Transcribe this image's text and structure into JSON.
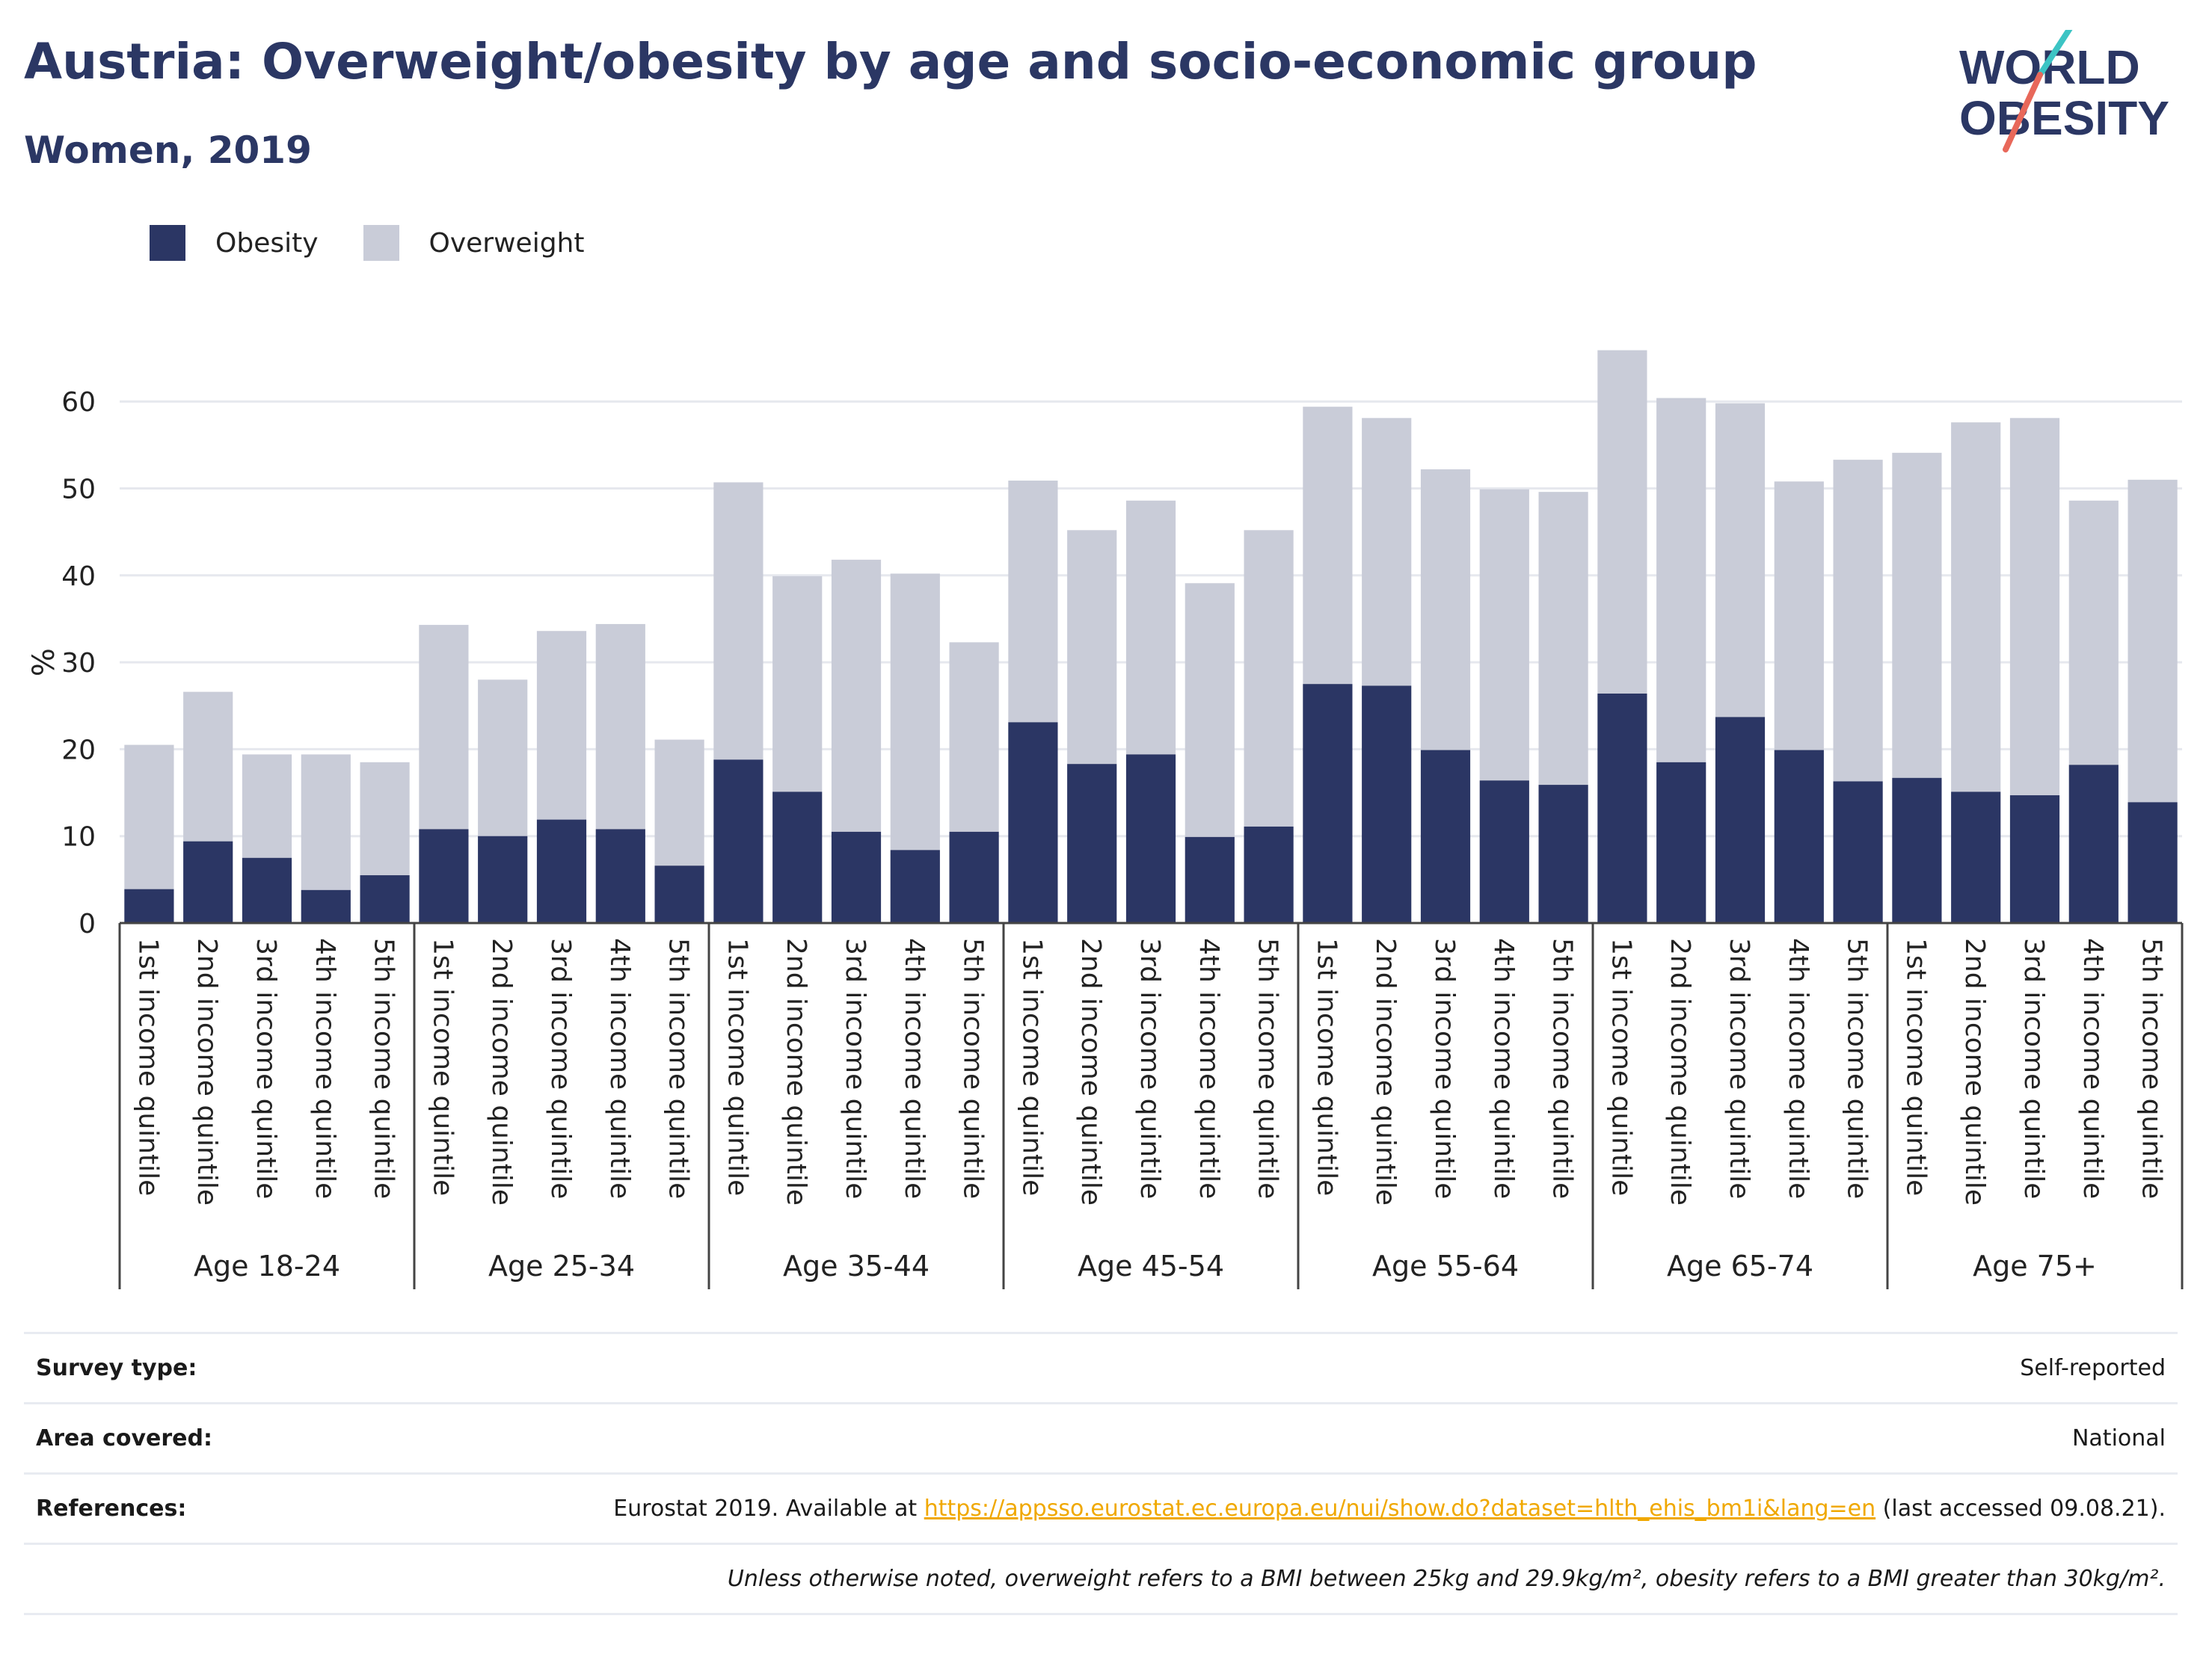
{
  "title": "Austria: Overweight/obesity by age and socio-economic group",
  "subtitle": "Women, 2019",
  "logo": {
    "line1": "WORLD",
    "line2": "OBESITY"
  },
  "colors": {
    "obesity": "#2b3664",
    "overweight": "#c9ccd8",
    "title": "#2b3764",
    "link": "#f0a800",
    "logo_teal": "#3cc4c4",
    "logo_red": "#e8685a"
  },
  "legend": [
    {
      "label": "Obesity",
      "color": "#2b3664"
    },
    {
      "label": "Overweight",
      "color": "#c9ccd8"
    }
  ],
  "chart_data": {
    "type": "bar",
    "stacked": true,
    "title": "Austria: Overweight/obesity by age and socio-economic group",
    "subtitle": "Women, 2019",
    "ylabel": "%",
    "ylim": [
      0,
      70
    ],
    "yticks": [
      0,
      10,
      20,
      30,
      40,
      50,
      60
    ],
    "grid": true,
    "legend_position": "top-left",
    "groups": [
      "Age 18-24",
      "Age 25-34",
      "Age 35-44",
      "Age 45-54",
      "Age 55-64",
      "Age 65-74",
      "Age 75+"
    ],
    "categories": [
      "1st income quintile",
      "2nd income quintile",
      "3rd income quintile",
      "4th income quintile",
      "5th income quintile"
    ],
    "series": [
      {
        "name": "Obesity",
        "values": [
          [
            3.9,
            9.4,
            7.5,
            3.8,
            5.5
          ],
          [
            10.8,
            10.0,
            11.9,
            10.8,
            6.6
          ],
          [
            18.8,
            15.1,
            10.5,
            8.4,
            10.5
          ],
          [
            23.1,
            18.3,
            19.4,
            9.9,
            11.1
          ],
          [
            27.5,
            27.3,
            19.9,
            16.4,
            15.9
          ],
          [
            26.4,
            18.5,
            23.7,
            19.9,
            16.3
          ],
          [
            16.7,
            15.1,
            14.7,
            18.2,
            13.9
          ]
        ]
      },
      {
        "name": "Overweight",
        "values": [
          [
            16.6,
            17.2,
            11.9,
            15.6,
            13.0
          ],
          [
            23.5,
            18.0,
            21.7,
            23.6,
            14.5
          ],
          [
            31.9,
            24.8,
            31.3,
            31.8,
            21.8
          ],
          [
            27.8,
            26.9,
            29.2,
            29.2,
            34.1
          ],
          [
            31.9,
            30.8,
            32.3,
            33.5,
            33.7
          ],
          [
            39.5,
            41.9,
            36.1,
            30.9,
            37.0
          ],
          [
            37.4,
            42.5,
            43.4,
            30.4,
            37.1
          ]
        ]
      }
    ]
  },
  "footer": {
    "survey_type_label": "Survey type:",
    "survey_type_value": "Self-reported",
    "area_label": "Area covered:",
    "area_value": "National",
    "references_label": "References:",
    "references_prefix": "Eurostat 2019. Available at ",
    "references_link": "https://appsso.eurostat.ec.europa.eu/nui/show.do?dataset=hlth_ehis_bm1i&lang=en",
    "references_suffix": " (last accessed 09.08.21).",
    "note": "Unless otherwise noted, overweight refers to a BMI between 25kg and 29.9kg/m², obesity refers to a BMI greater than 30kg/m²."
  }
}
